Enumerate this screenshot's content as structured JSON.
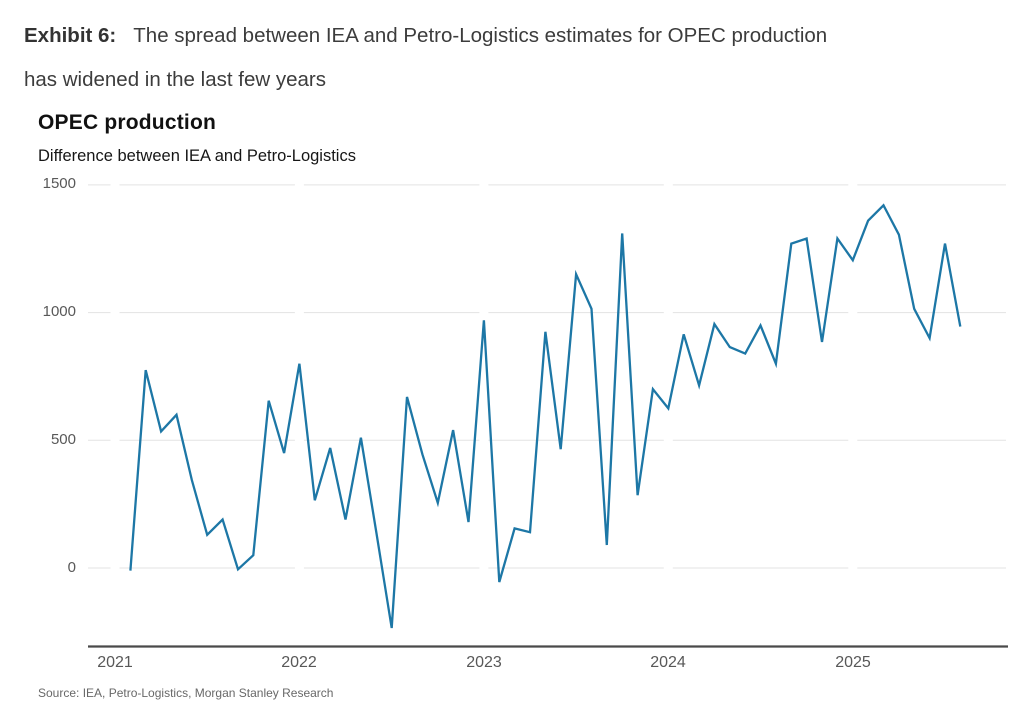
{
  "exhibit": {
    "label": "Exhibit 6:",
    "title_line1": "The spread between IEA and Petro-Logistics estimates for OPEC production",
    "title_line2": "has widened in the last few years"
  },
  "chart": {
    "title": "OPEC production",
    "subtitle": "Difference between IEA and Petro-Logistics"
  },
  "source": "Source: IEA, Petro-Logistics, Morgan Stanley Research",
  "chart_data": {
    "type": "line",
    "title": "OPEC production",
    "subtitle": "Difference between IEA and Petro-Logistics",
    "x": [
      "2021-02",
      "2021-03",
      "2021-04",
      "2021-05",
      "2021-06",
      "2021-07",
      "2021-08",
      "2021-09",
      "2021-10",
      "2021-11",
      "2021-12",
      "2022-01",
      "2022-02",
      "2022-03",
      "2022-04",
      "2022-05",
      "2022-06",
      "2022-07",
      "2022-08",
      "2022-09",
      "2022-10",
      "2022-11",
      "2022-12",
      "2023-01",
      "2023-02",
      "2023-03",
      "2023-04",
      "2023-05",
      "2023-06",
      "2023-07",
      "2023-08",
      "2023-09",
      "2023-10",
      "2023-11",
      "2023-12",
      "2024-01",
      "2024-02",
      "2024-03",
      "2024-04",
      "2024-05",
      "2024-06",
      "2024-07",
      "2024-08",
      "2024-09",
      "2024-10",
      "2024-11",
      "2024-12",
      "2025-01",
      "2025-02",
      "2025-03",
      "2025-04",
      "2025-05",
      "2025-06",
      "2025-07",
      "2025-08"
    ],
    "values": [
      -10,
      775,
      535,
      600,
      345,
      130,
      190,
      -5,
      50,
      655,
      450,
      800,
      265,
      470,
      190,
      510,
      140,
      -235,
      670,
      445,
      255,
      540,
      180,
      970,
      -55,
      155,
      140,
      925,
      465,
      1150,
      1015,
      90,
      1310,
      285,
      700,
      625,
      915,
      715,
      955,
      865,
      840,
      950,
      800,
      1270,
      1290,
      885,
      1290,
      1205,
      1360,
      1420,
      1305,
      1015,
      900,
      1270,
      945
    ],
    "x_tick_labels": [
      "2021",
      "2022",
      "2023",
      "2024",
      "2025"
    ],
    "y_ticks": [
      0,
      500,
      1000,
      1500
    ],
    "ylim": [
      -310,
      1540
    ],
    "grid": true,
    "legend_position": "none",
    "line_color": "#1d77a6",
    "gridline_color": "#e3e3e3",
    "axis_line_color": "#4a4a4a",
    "tick_label_color": "#585858"
  }
}
